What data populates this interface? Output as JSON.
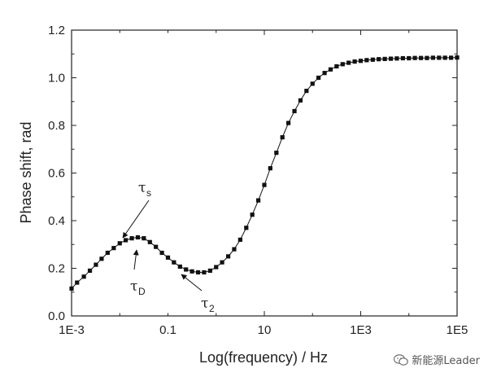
{
  "chart_data": {
    "type": "scatter",
    "xlabel": "Log(frequency) / Hz",
    "ylabel": "Phase shift, rad",
    "xscale": "log",
    "xlim": [
      0.001,
      100000
    ],
    "ylim": [
      0.0,
      1.2
    ],
    "grid": false,
    "line_connects_points": true,
    "marker": "square",
    "x_tick_labels": [
      "1E-3",
      "0.1",
      "10",
      "1E3",
      "1E5"
    ],
    "y_tick_labels": [
      "0.0",
      "0.2",
      "0.4",
      "0.6",
      "0.8",
      "1.0",
      "1.2"
    ],
    "series": [
      {
        "x": [
          0.001,
          0.0013,
          0.0018,
          0.0024,
          0.0032,
          0.0042,
          0.0056,
          0.0075,
          0.01,
          0.0133,
          0.0178,
          0.0237,
          0.0316,
          0.0422,
          0.0562,
          0.075,
          0.1,
          0.133,
          0.178,
          0.237,
          0.316,
          0.422,
          0.562,
          0.75,
          1.0,
          1.33,
          1.78,
          2.37,
          3.16,
          4.22,
          5.62,
          7.5,
          10,
          13.3,
          17.8,
          23.7,
          31.6,
          42.2,
          56.2,
          75,
          100,
          133,
          178,
          237,
          316,
          422,
          562,
          750,
          1000,
          1330,
          1780,
          2370,
          3160,
          4220,
          5620,
          7500,
          10000,
          13300,
          17800,
          23700,
          31600,
          42200,
          56200,
          75000,
          100000
        ],
        "y": [
          0.115,
          0.14,
          0.165,
          0.19,
          0.215,
          0.24,
          0.265,
          0.285,
          0.305,
          0.318,
          0.326,
          0.33,
          0.326,
          0.31,
          0.29,
          0.265,
          0.245,
          0.225,
          0.207,
          0.195,
          0.187,
          0.183,
          0.183,
          0.19,
          0.205,
          0.225,
          0.25,
          0.28,
          0.32,
          0.37,
          0.425,
          0.485,
          0.55,
          0.62,
          0.685,
          0.75,
          0.81,
          0.86,
          0.905,
          0.945,
          0.975,
          1.0,
          1.02,
          1.035,
          1.048,
          1.057,
          1.063,
          1.068,
          1.071,
          1.074,
          1.076,
          1.078,
          1.079,
          1.08,
          1.081,
          1.082,
          1.082,
          1.083,
          1.083,
          1.083,
          1.084,
          1.084,
          1.084,
          1.084,
          1.085
        ]
      }
    ],
    "annotations": [
      {
        "symbol": "τ",
        "sub": "s"
      },
      {
        "symbol": "τ",
        "sub": "D"
      },
      {
        "symbol": "τ",
        "sub": "2"
      }
    ]
  },
  "watermark": {
    "text": "新能源Leader",
    "icon": "wechat-icon"
  }
}
